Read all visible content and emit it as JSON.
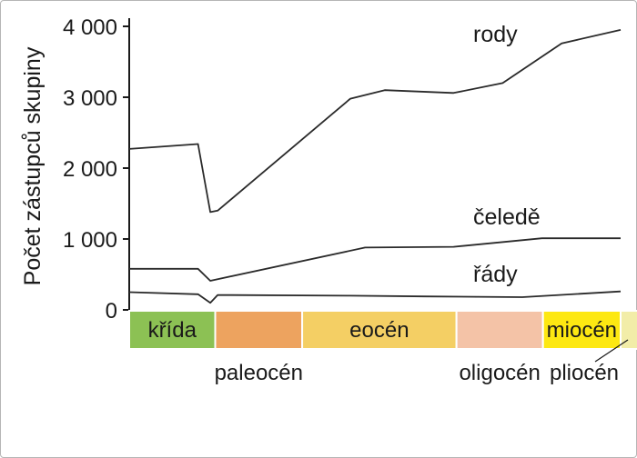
{
  "chart_data": {
    "type": "line",
    "ylabel": "Počet zástupců skupiny",
    "ylim": [
      0,
      4000
    ],
    "yticks": [
      {
        "value": 0,
        "label": "0"
      },
      {
        "value": 1000,
        "label": "1 000"
      },
      {
        "value": 2000,
        "label": "2 000"
      },
      {
        "value": 3000,
        "label": "3 000"
      },
      {
        "value": 4000,
        "label": "4 000"
      }
    ],
    "series": [
      {
        "name": "rody",
        "points": [
          [
            0.0,
            2270
          ],
          [
            0.14,
            2340
          ],
          [
            0.165,
            1380
          ],
          [
            0.18,
            1400
          ],
          [
            0.45,
            2980
          ],
          [
            0.52,
            3100
          ],
          [
            0.66,
            3060
          ],
          [
            0.76,
            3200
          ],
          [
            0.88,
            3760
          ],
          [
            1.0,
            3950
          ]
        ]
      },
      {
        "name": "čeledě",
        "points": [
          [
            0.0,
            580
          ],
          [
            0.14,
            580
          ],
          [
            0.165,
            410
          ],
          [
            0.48,
            880
          ],
          [
            0.66,
            890
          ],
          [
            0.84,
            1010
          ],
          [
            1.0,
            1010
          ]
        ]
      },
      {
        "name": "řády",
        "points": [
          [
            0.0,
            250
          ],
          [
            0.14,
            220
          ],
          [
            0.165,
            100
          ],
          [
            0.18,
            210
          ],
          [
            0.45,
            200
          ],
          [
            0.6,
            190
          ],
          [
            0.8,
            180
          ],
          [
            1.0,
            260
          ]
        ]
      }
    ],
    "periods": [
      {
        "name": "křída",
        "start": 0.0,
        "end": 0.175,
        "color": "#8cc154",
        "label_position": "inside"
      },
      {
        "name": "paleocén",
        "start": 0.175,
        "end": 0.352,
        "color": "#eda35f",
        "label_position": "below"
      },
      {
        "name": "eocén",
        "start": 0.352,
        "end": 0.666,
        "color": "#f4cf64",
        "label_position": "inside"
      },
      {
        "name": "oligocén",
        "start": 0.666,
        "end": 0.842,
        "color": "#f4c3a7",
        "label_position": "below"
      },
      {
        "name": "miocén",
        "start": 0.842,
        "end": 1.0,
        "color": "#fde812",
        "label_position": "inside"
      },
      {
        "name": "pliocén",
        "start": 1.0,
        "end": 1.06,
        "color": "#f2eda8",
        "label_position": "below-leader"
      }
    ],
    "grid": false,
    "legend": "none (series labels placed at line ends)"
  }
}
